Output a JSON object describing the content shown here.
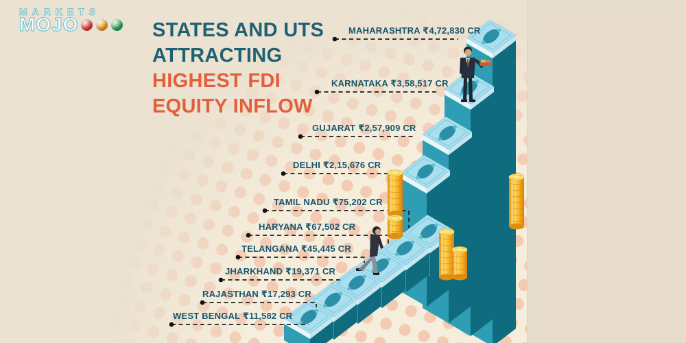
{
  "brand": {
    "name_top": "MARKETS",
    "name_bottom": "MOJO",
    "traffic_dots": [
      {
        "name": "red",
        "color": "#e23b2e"
      },
      {
        "name": "orange",
        "color": "#f2991d"
      },
      {
        "name": "green",
        "color": "#31a04f"
      }
    ]
  },
  "title": {
    "lines": [
      "STATES AND UTS",
      "ATTRACTING",
      "HIGHEST FDI",
      "EQUITY INFLOW"
    ],
    "teal_color": "#1f6173",
    "orange_color": "#e25f3b"
  },
  "chart_data": {
    "type": "bar",
    "title": "STATES AND UTS ATTRACTING HIGHEST FDI EQUITY INFLOW",
    "unit": "₹ crore (CR)",
    "orientation": "isometric 3D staircase of banknote stacks, ascending left to right",
    "legend": false,
    "categories": [
      "MAHARASHTRA",
      "KARNATAKA",
      "GUJARAT",
      "DELHI",
      "TAMIL NADU",
      "HARYANA",
      "TELANGANA",
      "JHARKHAND",
      "RAJASTHAN",
      "WEST BENGAL"
    ],
    "values": [
      472830,
      358517,
      257909,
      215676,
      75202,
      67502,
      45445,
      19371,
      17293,
      11582
    ],
    "value_labels": [
      "₹4,72,830 CR",
      "₹3,58,517 CR",
      "₹2,57,909 CR",
      "₹2,15,676 CR",
      "₹75,202 CR",
      "₹67,502 CR",
      "₹45,445 CR",
      "₹19,371 CR",
      "₹17,293 CR",
      "₹11,582 CR"
    ],
    "display_labels": [
      "MAHARASHTRA ₹4,72,830 CR",
      "KARNATAKA ₹3,58,517 CR",
      "GUJARAT ₹2,57,909 CR",
      "DELHI ₹2,15,676 CR",
      "TAMIL NADU ₹75,202 CR",
      "HARYANA ₹67,502 CR",
      "TELANGANA ₹45,445 CR",
      "JHARKHAND ₹19,371 CR",
      "RAJASTHAN ₹17,293 CR",
      "WEST BENGAL ₹11,582 CR"
    ],
    "bar_color_light_face": "#2f9db4",
    "bar_color_dark_face": "#0f6b7e",
    "banknote_top_color": "#abdff0",
    "coin_color": "#f5a81f",
    "label_color": "#17546c",
    "decorations": [
      "gold coin stacks beside bars",
      "businessman standing on Karnataka bar holding money tray",
      "businessman climbing the money staircase"
    ]
  }
}
